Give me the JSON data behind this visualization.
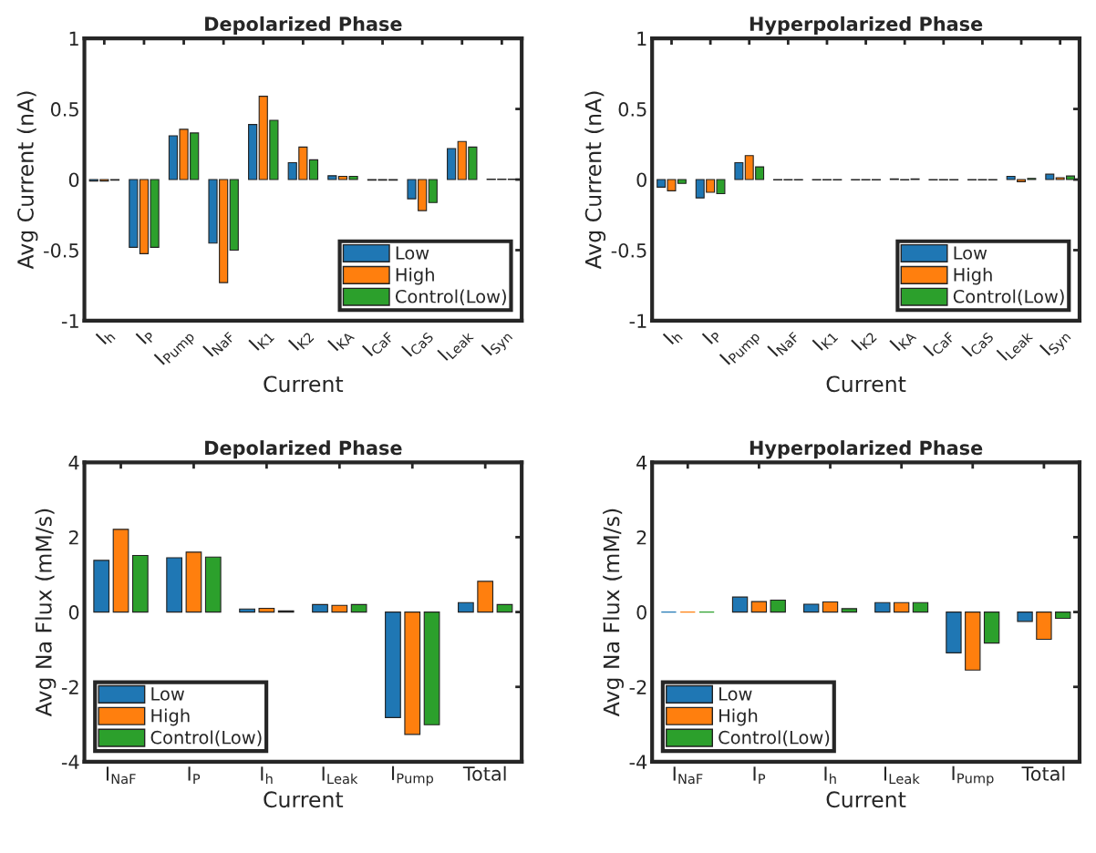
{
  "chart_data": [
    {
      "type": "bar",
      "title": "Depolarized Phase",
      "xlabel": "Current",
      "ylabel": "Avg Current (nA)",
      "categories": [
        "I$_{h}$",
        "I$_{P}$",
        "I$_{Pump}$",
        "I$_{NaF}$",
        "I$_{K1}$",
        "I$_{K2}$",
        "I$_{KA}$",
        "I$_{CaF}$",
        "I$_{CaS}$",
        "I$_{Leak}$",
        "I$_{Syn}$"
      ],
      "ylim": [
        -1,
        1
      ],
      "yticks": [
        -1,
        -0.5,
        0,
        0.5,
        1
      ],
      "legend": "bottom right",
      "grid": false,
      "series": [
        {
          "name": "Low",
          "color": "#1f77b4",
          "values": [
            -0.01,
            -0.48,
            0.31,
            -0.45,
            0.39,
            0.12,
            0.027,
            -0.005,
            -0.136,
            0.22,
            0.003
          ]
        },
        {
          "name": "High",
          "color": "#ff7f0e",
          "values": [
            -0.01,
            -0.525,
            0.356,
            -0.73,
            0.59,
            0.23,
            0.023,
            -0.005,
            -0.22,
            0.27,
            0.003
          ]
        },
        {
          "name": "Control(Low)",
          "color": "#2ca02c",
          "values": [
            -0.005,
            -0.48,
            0.33,
            -0.5,
            0.42,
            0.14,
            0.023,
            -0.005,
            -0.163,
            0.23,
            0.003
          ]
        }
      ]
    },
    {
      "type": "bar",
      "title": "Hyperpolarized Phase",
      "xlabel": "Current",
      "ylabel": "Avg Current (nA)",
      "categories": [
        "I$_{h}$",
        "I$_{P}$",
        "I$_{Pump}$",
        "I$_{NaF}$",
        "I$_{K1}$",
        "I$_{K2}$",
        "I$_{KA}$",
        "I$_{CaF}$",
        "I$_{CaS}$",
        "I$_{Leak}$",
        "I$_{Syn}$"
      ],
      "ylim": [
        -1,
        1
      ],
      "yticks": [
        -1,
        -0.5,
        0,
        0.5,
        1
      ],
      "legend": "bottom right",
      "grid": false,
      "series": [
        {
          "name": "Low",
          "color": "#1f77b4",
          "values": [
            -0.054,
            -0.13,
            0.12,
            -0.003,
            -0.003,
            -0.003,
            0.005,
            -0.003,
            -0.003,
            0.023,
            0.038
          ]
        },
        {
          "name": "High",
          "color": "#ff7f0e",
          "values": [
            -0.08,
            -0.09,
            0.17,
            -0.003,
            -0.003,
            -0.003,
            -0.003,
            -0.003,
            -0.003,
            -0.015,
            0.013
          ]
        },
        {
          "name": "Control(Low)",
          "color": "#2ca02c",
          "values": [
            -0.027,
            -0.1,
            0.09,
            -0.003,
            -0.003,
            -0.003,
            0.005,
            -0.003,
            -0.003,
            0.008,
            0.025
          ]
        }
      ]
    },
    {
      "type": "bar",
      "title": "Depolarized Phase",
      "xlabel": "Current",
      "ylabel": "Avg Na Flux (mM/s)",
      "categories": [
        "I$_{NaF}$",
        "I$_{P}$",
        "I$_{h}$",
        "I$_{Leak}$",
        "I$_{Pump}$",
        "Total"
      ],
      "ylim": [
        -4,
        4
      ],
      "yticks": [
        -4,
        -2,
        0,
        2,
        4
      ],
      "legend": "bottom left",
      "grid": false,
      "series": [
        {
          "name": "Low",
          "color": "#1f77b4",
          "values": [
            1.38,
            1.45,
            0.08,
            0.2,
            -2.82,
            0.25
          ]
        },
        {
          "name": "High",
          "color": "#ff7f0e",
          "values": [
            2.21,
            1.6,
            0.1,
            0.18,
            -3.27,
            0.82
          ]
        },
        {
          "name": "Control(Low)",
          "color": "#2ca02c",
          "values": [
            1.51,
            1.47,
            0.03,
            0.2,
            -3.01,
            0.2
          ]
        }
      ]
    },
    {
      "type": "bar",
      "title": "Hyperpolarized Phase",
      "xlabel": "Current",
      "ylabel": "Avg Na Flux (mM/s)",
      "categories": [
        "I$_{NaF}$",
        "I$_{P}$",
        "I$_{h}$",
        "I$_{Leak}$",
        "I$_{Pump}$",
        "Total"
      ],
      "ylim": [
        -4,
        4
      ],
      "yticks": [
        -4,
        -2,
        0,
        2,
        4
      ],
      "legend": "bottom left",
      "grid": false,
      "series": [
        {
          "name": "Low",
          "color": "#1f77b4",
          "values": [
            0,
            0.4,
            0.21,
            0.25,
            -1.09,
            -0.25
          ]
        },
        {
          "name": "High",
          "color": "#ff7f0e",
          "values": [
            0,
            0.28,
            0.27,
            0.25,
            -1.55,
            -0.73
          ]
        },
        {
          "name": "Control(Low)",
          "color": "#2ca02c",
          "values": [
            0,
            0.32,
            0.09,
            0.25,
            -0.83,
            -0.17
          ]
        }
      ]
    }
  ]
}
